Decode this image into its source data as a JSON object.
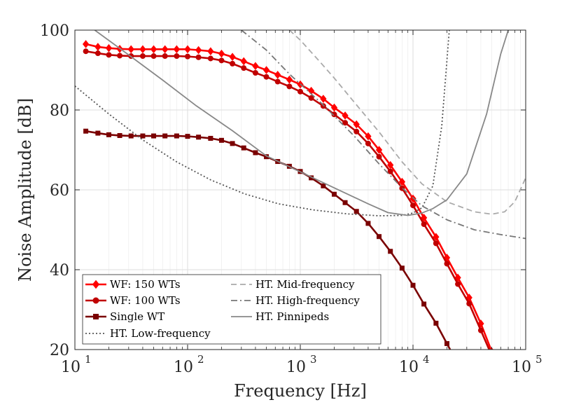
{
  "chart_data": {
    "type": "line",
    "xlabel": "Frequency [Hz]",
    "ylabel": "Noise Amplitude [dB]",
    "xscale": "log",
    "xlim": [
      10,
      100000
    ],
    "ylim": [
      20,
      100
    ],
    "grid": true,
    "legend_position": "bottom-left",
    "x_ticks": [
      10,
      100,
      1000,
      10000,
      100000
    ],
    "x_tick_labels": [
      {
        "base": "10",
        "exp": "1"
      },
      {
        "base": "10",
        "exp": "2"
      },
      {
        "base": "10",
        "exp": "3"
      },
      {
        "base": "10",
        "exp": "4"
      },
      {
        "base": "10",
        "exp": "5"
      }
    ],
    "y_ticks": [
      20,
      40,
      60,
      80,
      100
    ],
    "y_tick_labels": [
      "20",
      "40",
      "60",
      "80",
      "100"
    ],
    "series": [
      {
        "name": "WF: 150 WTs",
        "color": "#ff0000",
        "marker": "diamond",
        "style": "solid",
        "x": [
          12.5,
          16,
          20,
          25,
          31.5,
          40,
          50,
          63,
          80,
          100,
          125,
          160,
          200,
          250,
          315,
          400,
          500,
          630,
          800,
          1000,
          1250,
          1600,
          2000,
          2500,
          3150,
          4000,
          5000,
          6300,
          8000,
          10000,
          12500,
          16000,
          20000,
          25000,
          31500,
          40000,
          50000
        ],
        "y": [
          96.5,
          95.8,
          95.5,
          95.3,
          95.2,
          95.2,
          95.2,
          95.2,
          95.2,
          95.2,
          95.0,
          94.7,
          94.1,
          93.3,
          92.2,
          91.0,
          90.0,
          88.8,
          87.6,
          86.4,
          84.8,
          82.8,
          80.6,
          78.6,
          76.4,
          73.4,
          70.0,
          66.2,
          62.0,
          57.8,
          53.0,
          48.2,
          43.0,
          38.0,
          33.0,
          26.5,
          19.5
        ]
      },
      {
        "name": "WF: 100 WTs",
        "color": "#c00000",
        "marker": "circle",
        "style": "solid",
        "x": [
          12.5,
          16,
          20,
          25,
          31.5,
          40,
          50,
          63,
          80,
          100,
          125,
          160,
          200,
          250,
          315,
          400,
          500,
          630,
          800,
          1000,
          1250,
          1600,
          2000,
          2500,
          3150,
          4000,
          5000,
          6300,
          8000,
          10000,
          12500,
          16000,
          20000,
          25000,
          31500,
          40000,
          50000
        ],
        "y": [
          94.7,
          94.2,
          93.8,
          93.6,
          93.5,
          93.5,
          93.5,
          93.5,
          93.5,
          93.4,
          93.2,
          92.9,
          92.4,
          91.6,
          90.5,
          89.3,
          88.3,
          87.1,
          85.9,
          84.6,
          83.0,
          81.0,
          78.9,
          76.8,
          74.6,
          71.6,
          68.3,
          64.6,
          60.4,
          56.1,
          51.4,
          46.6,
          41.5,
          36.4,
          31.5,
          24.8,
          18.5
        ]
      },
      {
        "name": "Single WT",
        "color": "#7a0000",
        "marker": "square",
        "style": "solid",
        "x": [
          12.5,
          16,
          20,
          25,
          31.5,
          40,
          50,
          63,
          80,
          100,
          125,
          160,
          200,
          250,
          315,
          400,
          500,
          630,
          800,
          1000,
          1250,
          1600,
          2000,
          2500,
          3150,
          4000,
          5000,
          6300,
          8000,
          10000,
          12500,
          16000,
          20000,
          25000
        ],
        "y": [
          74.7,
          74.2,
          73.8,
          73.6,
          73.5,
          73.5,
          73.5,
          73.5,
          73.5,
          73.4,
          73.2,
          72.9,
          72.4,
          71.6,
          70.5,
          69.3,
          68.3,
          67.1,
          65.9,
          64.6,
          63.0,
          61.0,
          58.9,
          56.8,
          54.6,
          51.6,
          48.3,
          44.6,
          40.4,
          36.1,
          31.4,
          26.6,
          21.5,
          16.4
        ]
      },
      {
        "name": "HT. Low-frequency",
        "color": "#555555",
        "marker": "none",
        "style": "dotted",
        "x": [
          10,
          20,
          40,
          80,
          160,
          320,
          640,
          1280,
          2560,
          5000,
          8000,
          10000,
          12000,
          15000,
          18000,
          21000
        ],
        "y": [
          86,
          79,
          72.5,
          67,
          62.5,
          59,
          56.5,
          55,
          54,
          53.5,
          53.6,
          54.2,
          55.5,
          61,
          76,
          100
        ]
      },
      {
        "name": "HT. Mid-frequency",
        "color": "#aaaaaa",
        "marker": "none",
        "style": "dashed",
        "x": [
          800,
          1000,
          1500,
          2000,
          3000,
          5000,
          8000,
          12000,
          20000,
          35000,
          50000,
          65000,
          80000,
          100000
        ],
        "y": [
          100,
          97.5,
          92,
          88,
          82,
          74.5,
          67,
          61.5,
          57,
          54.5,
          53.9,
          54.5,
          57,
          63
        ]
      },
      {
        "name": "HT. High-frequency",
        "color": "#777777",
        "marker": "none",
        "style": "dashdot",
        "x": [
          300,
          500,
          800,
          1000,
          1500,
          2000,
          3000,
          5000,
          8000,
          12000,
          20000,
          35000,
          60000,
          100000
        ],
        "y": [
          100,
          95,
          89,
          86.5,
          82,
          78.5,
          73.5,
          66.5,
          60.5,
          56,
          52.5,
          50,
          48.8,
          47.8
        ]
      },
      {
        "name": "HT. Pinnipeds",
        "color": "#888888",
        "marker": "none",
        "style": "solid",
        "x": [
          15,
          30,
          60,
          120,
          250,
          500,
          1000,
          2000,
          4000,
          6000,
          9000,
          12000,
          15000,
          20000,
          30000,
          45000,
          60000,
          70000
        ],
        "y": [
          100,
          93.8,
          87.5,
          81,
          74.8,
          68.5,
          64.5,
          60.5,
          56.5,
          54.3,
          53.6,
          54.2,
          55.3,
          57.5,
          64,
          79,
          94,
          100
        ]
      }
    ]
  }
}
